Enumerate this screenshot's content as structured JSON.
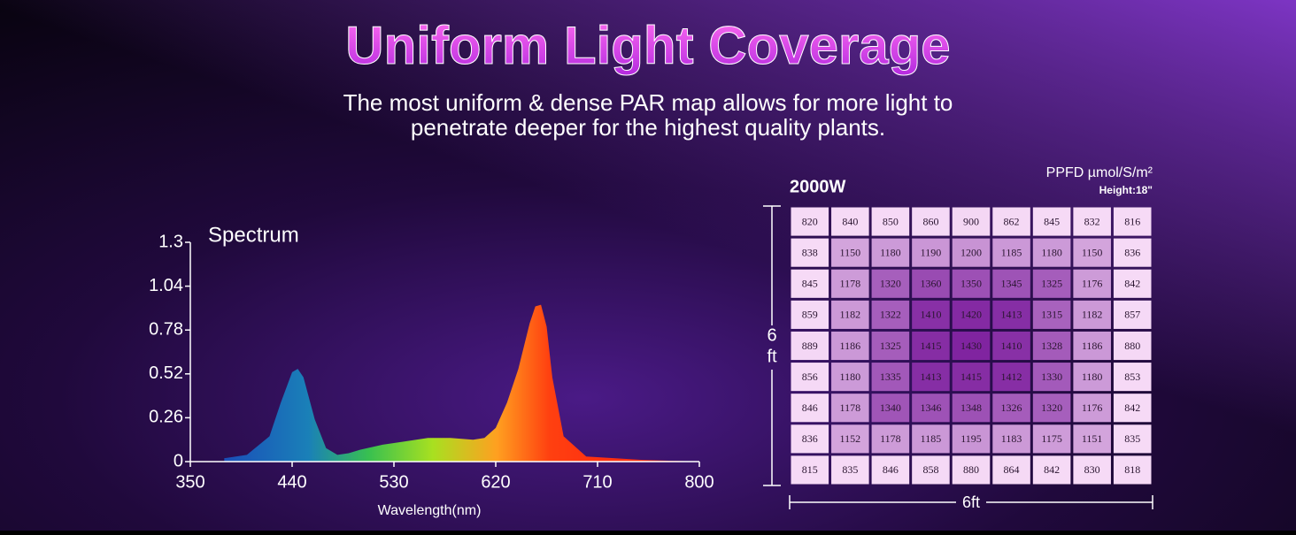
{
  "header": {
    "title": "Uniform Light Coverage",
    "subtitle": [
      "The most uniform & dense PAR map allows for more light to",
      "penetrate deeper for the highest quality plants."
    ]
  },
  "chart_data": {
    "type": "area",
    "title": "Spectrum",
    "x_label": "Wavelength(nm)",
    "x": [
      380,
      400,
      420,
      430,
      440,
      445,
      450,
      460,
      470,
      480,
      490,
      500,
      520,
      540,
      560,
      580,
      600,
      610,
      620,
      630,
      640,
      650,
      655,
      660,
      665,
      670,
      680,
      700,
      750,
      800
    ],
    "values": [
      0.02,
      0.04,
      0.15,
      0.35,
      0.53,
      0.55,
      0.5,
      0.25,
      0.08,
      0.04,
      0.05,
      0.07,
      0.1,
      0.12,
      0.14,
      0.14,
      0.13,
      0.14,
      0.2,
      0.35,
      0.55,
      0.82,
      0.92,
      0.93,
      0.8,
      0.5,
      0.15,
      0.03,
      0.01,
      0
    ],
    "xlim": [
      350,
      800
    ],
    "xticks": [
      350,
      440,
      530,
      620,
      710,
      800
    ],
    "ylim": [
      0,
      1.3
    ],
    "yticks": [
      0,
      0.26,
      0.52,
      0.78,
      1.04,
      1.3
    ]
  },
  "ppfd_map": {
    "title": "2000W",
    "unit": "PPFD µmol/S/m²",
    "height": "Height:18\"",
    "height_label": [
      "6",
      "ft"
    ],
    "width_label": "6ft",
    "rows": [
      [
        820,
        840,
        850,
        860,
        900,
        862,
        845,
        832,
        816
      ],
      [
        838,
        1150,
        1180,
        1190,
        1200,
        1185,
        1180,
        1150,
        836
      ],
      [
        845,
        1178,
        1320,
        1360,
        1350,
        1345,
        1325,
        1176,
        842
      ],
      [
        859,
        1182,
        1322,
        1410,
        1420,
        1413,
        1315,
        1182,
        857
      ],
      [
        889,
        1186,
        1325,
        1415,
        1430,
        1410,
        1328,
        1186,
        880
      ],
      [
        856,
        1180,
        1335,
        1413,
        1415,
        1412,
        1330,
        1180,
        853
      ],
      [
        846,
        1178,
        1340,
        1346,
        1348,
        1326,
        1320,
        1176,
        842
      ],
      [
        836,
        1152,
        1178,
        1185,
        1195,
        1183,
        1175,
        1151,
        835
      ],
      [
        815,
        835,
        846,
        858,
        880,
        864,
        842,
        830,
        818
      ]
    ]
  }
}
